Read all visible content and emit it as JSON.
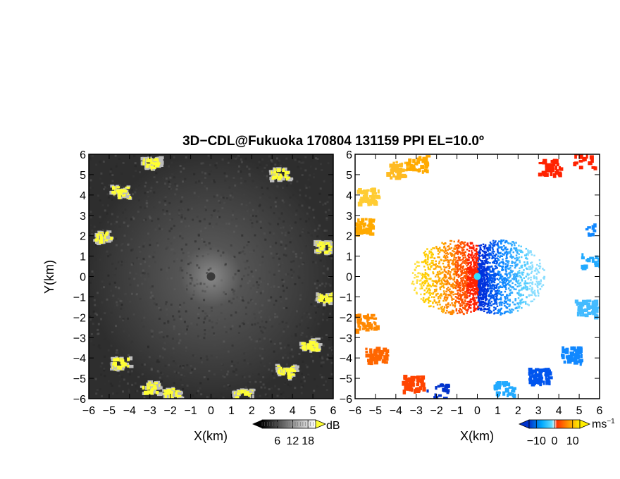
{
  "title": "3D−CDL@Fukuoka 170804 131159 PPI EL=10.0º",
  "chart_data": [
    {
      "type": "heatmap",
      "panel": "left",
      "product": "backscatter intensity",
      "xlabel": "X(km)",
      "ylabel": "Y(km)",
      "xlim": [
        -6,
        6
      ],
      "ylim": [
        -6,
        6
      ],
      "xticks": [
        "−6",
        "−5",
        "−4",
        "−3",
        "−2",
        "−1",
        "0",
        "1",
        "2",
        "3",
        "4",
        "5",
        "6"
      ],
      "yticks": [
        "6",
        "5",
        "4",
        "3",
        "2",
        "1",
        "0",
        "−1",
        "−2",
        "−3",
        "−4",
        "−5",
        "−6"
      ],
      "colorbar": {
        "unit": "dB",
        "ticks": [
          "6",
          "12",
          "18"
        ],
        "range": [
          0,
          21
        ],
        "colors": [
          "#000000",
          "#ffffff"
        ],
        "high_color": "#ffff33"
      },
      "range_ring_km": 6,
      "high_echo_patches_km": [
        {
          "x": -4.5,
          "y": 4.2
        },
        {
          "x": -5.4,
          "y": 2.0
        },
        {
          "x": -3.0,
          "y": 5.6
        },
        {
          "x": 3.3,
          "y": 5.1
        },
        {
          "x": 5.5,
          "y": 1.5
        },
        {
          "x": 5.6,
          "y": -1.0
        },
        {
          "x": 4.8,
          "y": -3.3
        },
        {
          "x": 3.6,
          "y": -4.6
        },
        {
          "x": -4.5,
          "y": -4.2
        },
        {
          "x": -3.0,
          "y": -5.4
        },
        {
          "x": -2.0,
          "y": -5.7
        },
        {
          "x": 1.5,
          "y": -5.8
        }
      ]
    },
    {
      "type": "heatmap",
      "panel": "right",
      "product": "Doppler velocity",
      "xlabel": "X(km)",
      "ylabel": "",
      "xlim": [
        -6,
        6
      ],
      "ylim": [
        -6,
        6
      ],
      "xticks": [
        "−6",
        "−5",
        "−4",
        "−3",
        "−2",
        "−1",
        "0",
        "1",
        "2",
        "3",
        "4",
        "5",
        "6"
      ],
      "yticks": [
        "6",
        "5",
        "4",
        "3",
        "2",
        "1",
        "0",
        "−1",
        "−2",
        "−3",
        "−4",
        "−5",
        "−6"
      ],
      "colorbar": {
        "unit": "ms",
        "unit_sup": "−1",
        "ticks": [
          "−10",
          "0",
          "10"
        ],
        "range": [
          -14,
          14
        ],
        "colors": [
          "#0033cc",
          "#00ccff",
          "#ffffff",
          "#ff0000",
          "#ff9900",
          "#ffff00"
        ]
      },
      "velocity_field": "westward side positive (warm colors), eastward side negative (cool colors)"
    }
  ]
}
